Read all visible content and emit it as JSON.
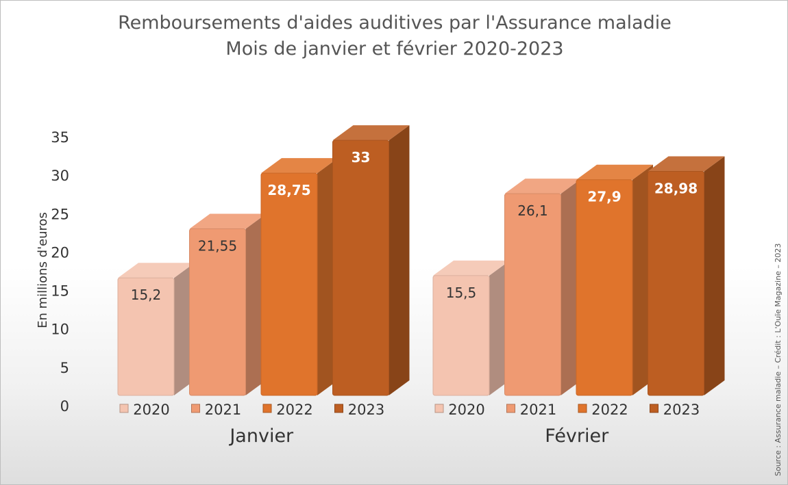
{
  "chart_data": {
    "type": "bar",
    "title": "Remboursements d'aides auditives par l'Assurance maladie",
    "subtitle": "Mois de janvier et février 2020-2023",
    "ylabel": "En millions d'euros",
    "ylim": [
      0,
      35
    ],
    "yticks": [
      "0",
      "5",
      "10",
      "15",
      "20",
      "25",
      "30",
      "35"
    ],
    "grid": false,
    "groups": [
      {
        "name": "Janvier",
        "bars": [
          {
            "year": "2020",
            "value": 15.2,
            "label": "15,2"
          },
          {
            "year": "2021",
            "value": 21.55,
            "label": "21,55"
          },
          {
            "year": "2022",
            "value": 28.75,
            "label": "28,75"
          },
          {
            "year": "2023",
            "value": 33,
            "label": "33"
          }
        ]
      },
      {
        "name": "Février",
        "bars": [
          {
            "year": "2020",
            "value": 15.5,
            "label": "15,5"
          },
          {
            "year": "2021",
            "value": 26.1,
            "label": "26,1"
          },
          {
            "year": "2022",
            "value": 27.9,
            "label": "27,9"
          },
          {
            "year": "2023",
            "value": 28.98,
            "label": "28,98"
          }
        ]
      }
    ],
    "colors": {
      "2020": "#f4c4b0",
      "2021": "#ef9a72",
      "2022": "#e0742c",
      "2023": "#bd5e22"
    }
  },
  "source": "Source : Assurance maladie – Crédit : L'Ouïe Magazine – 2023"
}
